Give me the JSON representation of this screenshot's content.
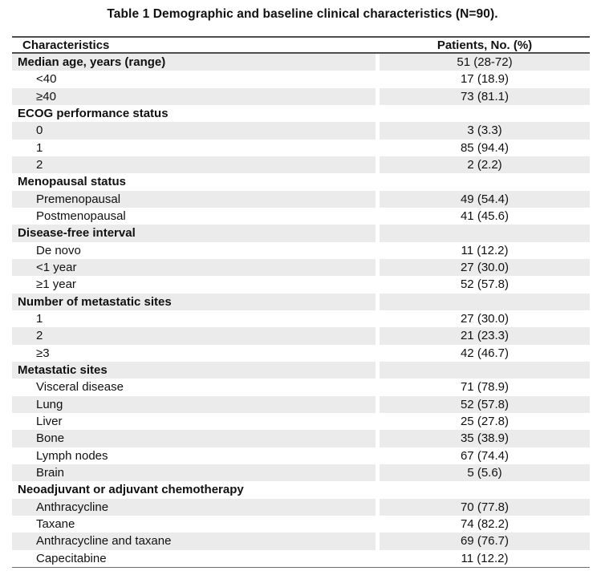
{
  "title": "Table 1 Demographic and baseline clinical characteristics (N=90).",
  "table": {
    "header": {
      "characteristics": "Characteristics",
      "patients": "Patients, No. (%)"
    },
    "rows": [
      {
        "label": "Median age, years (range)",
        "value": "51 (28-72)",
        "style": "section"
      },
      {
        "label": "<40",
        "value": "17 (18.9)",
        "style": "item"
      },
      {
        "label": "≥40",
        "value": "73 (81.1)",
        "style": "item"
      },
      {
        "label": "ECOG performance status",
        "value": "",
        "style": "section"
      },
      {
        "label": "0",
        "value": "3 (3.3)",
        "style": "item"
      },
      {
        "label": "1",
        "value": "85 (94.4)",
        "style": "item"
      },
      {
        "label": "2",
        "value": "2 (2.2)",
        "style": "item"
      },
      {
        "label": "Menopausal status",
        "value": "",
        "style": "section"
      },
      {
        "label": "Premenopausal",
        "value": "49 (54.4)",
        "style": "item"
      },
      {
        "label": "Postmenopausal",
        "value": "41 (45.6)",
        "style": "item"
      },
      {
        "label": "Disease-free interval",
        "value": "",
        "style": "section"
      },
      {
        "label": "De novo",
        "value": "11 (12.2)",
        "style": "item"
      },
      {
        "label": "<1 year",
        "value": "27 (30.0)",
        "style": "item"
      },
      {
        "label": "≥1 year",
        "value": "52 (57.8)",
        "style": "item"
      },
      {
        "label": "Number of metastatic sites",
        "value": "",
        "style": "section"
      },
      {
        "label": "1",
        "value": "27 (30.0)",
        "style": "item"
      },
      {
        "label": "2",
        "value": "21 (23.3)",
        "style": "item"
      },
      {
        "label": "≥3",
        "value": "42 (46.7)",
        "style": "item"
      },
      {
        "label": "Metastatic sites",
        "value": "",
        "style": "section"
      },
      {
        "label": "Visceral disease",
        "value": "71 (78.9)",
        "style": "item"
      },
      {
        "label": "Lung",
        "value": "52 (57.8)",
        "style": "item"
      },
      {
        "label": "Liver",
        "value": "25 (27.8)",
        "style": "item"
      },
      {
        "label": "Bone",
        "value": "35 (38.9)",
        "style": "item"
      },
      {
        "label": "Lymph nodes",
        "value": "67 (74.4)",
        "style": "item"
      },
      {
        "label": "Brain",
        "value": "5 (5.6)",
        "style": "item"
      },
      {
        "label": "Neoadjuvant or adjuvant chemotherapy",
        "value": "",
        "style": "section"
      },
      {
        "label": "Anthracycline",
        "value": "70 (77.8)",
        "style": "item"
      },
      {
        "label": "Taxane",
        "value": "74 (82.2)",
        "style": "item"
      },
      {
        "label": "Anthracycline and taxane",
        "value": "69 (76.7)",
        "style": "item"
      },
      {
        "label": "Capecitabine",
        "value": "11 (12.2)",
        "style": "item"
      }
    ]
  },
  "colors": {
    "row_shading": "#ebebeb",
    "rule": "#4d4d4d",
    "text": "#111111",
    "background": "#ffffff"
  }
}
